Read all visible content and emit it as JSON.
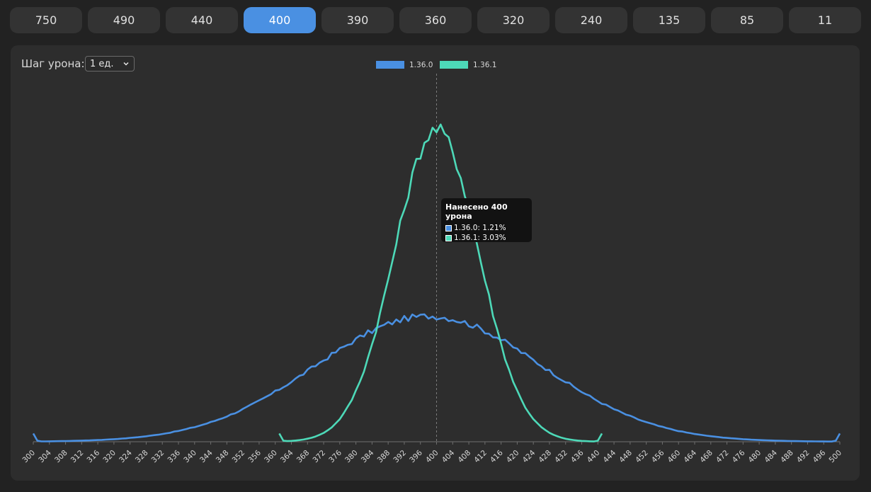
{
  "tabs": [
    {
      "label": "750"
    },
    {
      "label": "490"
    },
    {
      "label": "440"
    },
    {
      "label": "400",
      "active": true
    },
    {
      "label": "390"
    },
    {
      "label": "360"
    },
    {
      "label": "320"
    },
    {
      "label": "240"
    },
    {
      "label": "135"
    },
    {
      "label": "85"
    },
    {
      "label": "11"
    }
  ],
  "controls": {
    "step_label": "Шаг урона:",
    "step_value": "1 ед."
  },
  "tooltip": {
    "title": "Нанесено 400 урона",
    "rows": [
      {
        "text": "1.36.0: 1.21%",
        "color": "#4a90e2"
      },
      {
        "text": "1.36.1: 3.03%",
        "color": "#4dd9b8"
      }
    ]
  },
  "chart_data": {
    "type": "line",
    "x_range": [
      300,
      500
    ],
    "x_tick_step": 4,
    "y_range_percent": [
      0,
      3.3
    ],
    "hover_x": 400,
    "legend_position": "top-center",
    "series": [
      {
        "name": "1.36.0",
        "color": "#4a90e2",
        "x_start": 301,
        "x_end": 499,
        "bell": {
          "peak_x": 398,
          "peak_percent": 1.22,
          "sigma": 28
        },
        "end_spikes_percent": 0.08,
        "hover_value_percent": 1.21
      },
      {
        "name": "1.36.1",
        "color": "#4dd9b8",
        "x_start": 362,
        "x_end": 440,
        "bell": {
          "peak_x": 400,
          "peak_percent": 3.03,
          "sigma": 10.5
        },
        "end_spikes_percent": 0.08,
        "hover_value_percent": 3.03
      }
    ]
  }
}
